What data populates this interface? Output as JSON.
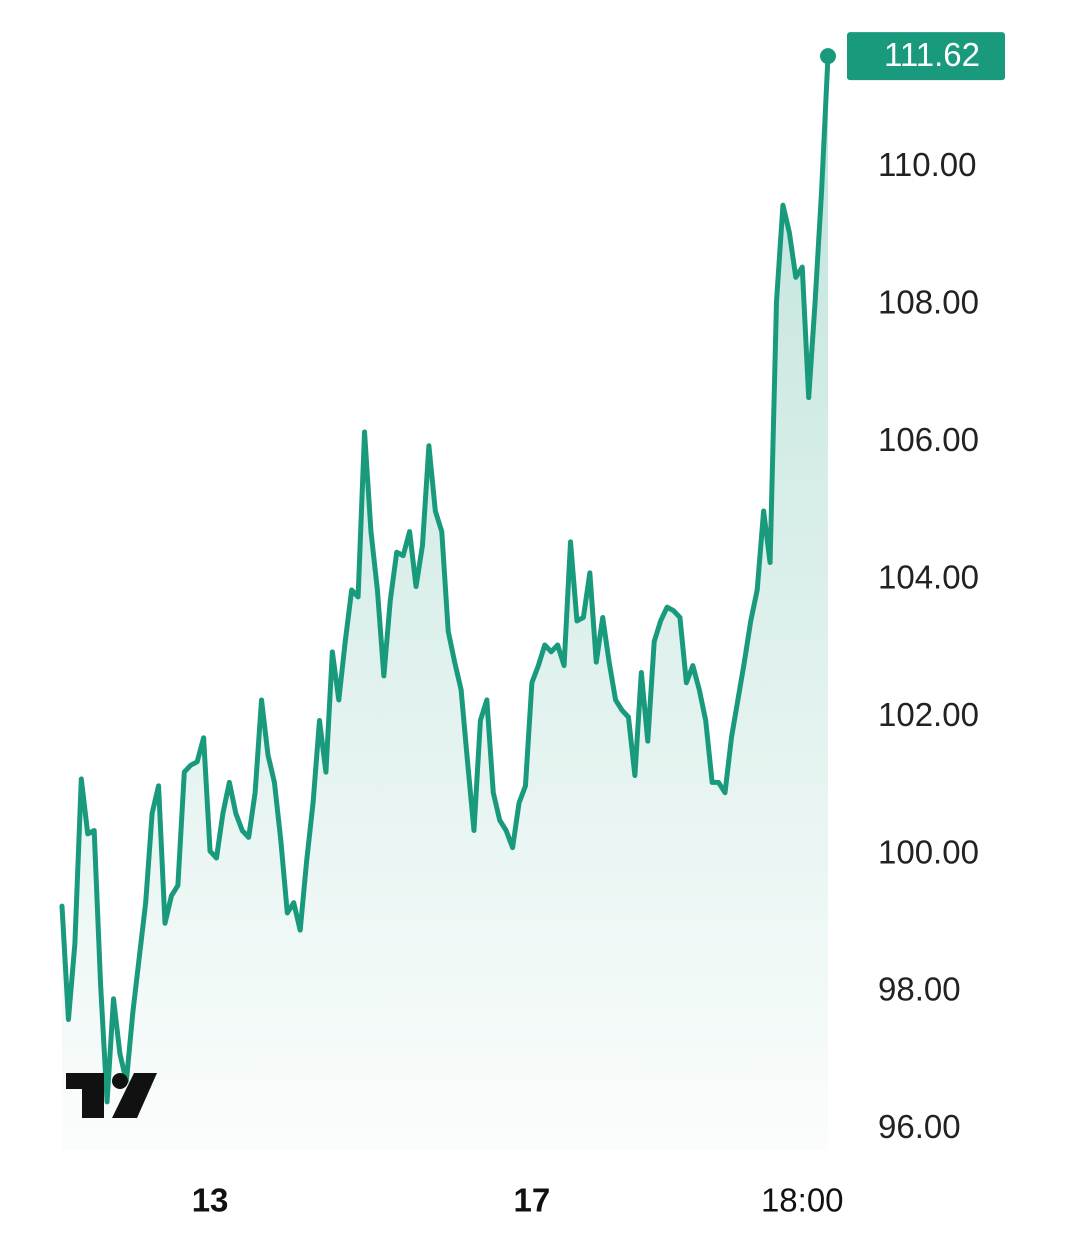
{
  "chart_data": {
    "type": "line",
    "categories": [
      null,
      null,
      null,
      null,
      null,
      null,
      null,
      null,
      null,
      null,
      null,
      null,
      null,
      null,
      null,
      null,
      null,
      null,
      null,
      null,
      null,
      null,
      null,
      "13",
      null,
      null,
      null,
      null,
      null,
      null,
      null,
      null,
      null,
      null,
      null,
      null,
      null,
      null,
      null,
      null,
      null,
      null,
      null,
      null,
      null,
      null,
      null,
      null,
      null,
      null,
      null,
      null,
      null,
      null,
      null,
      null,
      null,
      null,
      null,
      null,
      null,
      null,
      null,
      null,
      null,
      null,
      null,
      null,
      null,
      null,
      null,
      null,
      null,
      "17",
      null,
      null,
      null,
      null,
      null,
      null,
      null,
      null,
      null,
      null,
      null,
      null,
      null,
      null,
      null,
      null,
      null,
      null,
      null,
      null,
      null,
      null,
      null,
      null,
      null,
      null,
      null,
      null,
      null,
      null,
      null,
      null,
      null,
      null,
      null,
      null,
      null,
      null,
      null,
      null,
      null,
      "18:00",
      null,
      null,
      null,
      null
    ],
    "series": [
      {
        "color": "#1a9a7c",
        "values": [
          99.25,
          97.6,
          98.7,
          101.1,
          100.3,
          100.35,
          98.1,
          96.4,
          97.9,
          97.1,
          96.7,
          97.7,
          98.5,
          99.3,
          100.6,
          101.0,
          99.0,
          99.4,
          99.55,
          101.2,
          101.3,
          101.35,
          101.7,
          100.05,
          99.95,
          100.6,
          101.05,
          100.6,
          100.35,
          100.25,
          100.9,
          102.25,
          101.45,
          101.05,
          100.2,
          99.15,
          99.3,
          98.9,
          99.9,
          100.75,
          101.95,
          101.2,
          102.95,
          102.25,
          103.1,
          103.85,
          103.75,
          106.15,
          104.7,
          103.85,
          102.6,
          103.7,
          104.4,
          104.35,
          104.7,
          103.9,
          104.5,
          105.95,
          105.0,
          104.7,
          103.25,
          102.8,
          102.4,
          101.35,
          100.35,
          101.95,
          102.25,
          100.9,
          100.5,
          100.35,
          100.1,
          100.75,
          101.0,
          102.5,
          102.75,
          103.05,
          102.95,
          103.05,
          102.75,
          104.55,
          103.4,
          103.45,
          104.1,
          102.8,
          103.45,
          102.8,
          102.25,
          102.1,
          102.0,
          101.15,
          102.65,
          101.65,
          103.1,
          103.4,
          103.6,
          103.55,
          103.45,
          102.5,
          102.75,
          102.4,
          101.95,
          101.05,
          101.05,
          100.9,
          101.7,
          102.25,
          102.8,
          103.4,
          103.85,
          105.0,
          104.25,
          108.05,
          109.45,
          109.05,
          108.4,
          108.55,
          106.65,
          108.05,
          109.65,
          111.62
        ]
      }
    ],
    "current_price": 111.62,
    "ylim": [
      95.7,
      112
    ],
    "yticks": [
      {
        "value": 96,
        "label": "96.00"
      },
      {
        "value": 98,
        "label": "98.00"
      },
      {
        "value": 100,
        "label": "100.00"
      },
      {
        "value": 102,
        "label": "102.00"
      },
      {
        "value": 104,
        "label": "104.00"
      },
      {
        "value": 106,
        "label": "106.00"
      },
      {
        "value": 108,
        "label": "108.00"
      },
      {
        "value": 110,
        "label": "110.00"
      }
    ],
    "grid": false
  }
}
